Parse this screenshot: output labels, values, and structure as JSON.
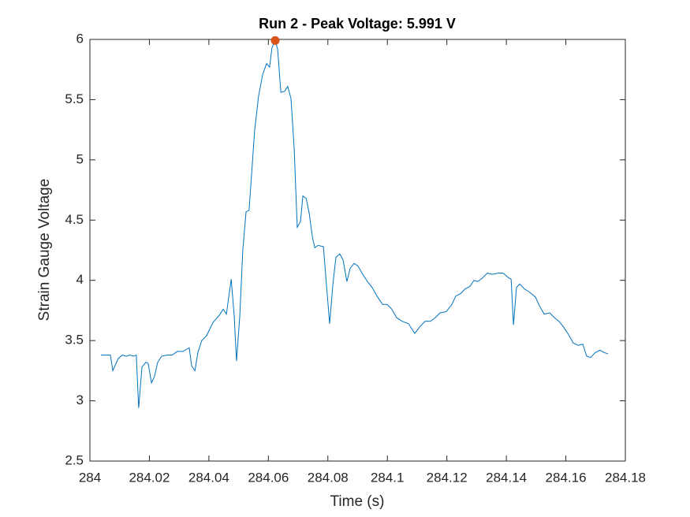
{
  "chart_data": {
    "type": "line",
    "title": "Run 2 - Peak Voltage: 5.991 V",
    "x_label": "Time (s)",
    "y_label": "Strain Gauge Voltage",
    "xlim": [
      284,
      284.18
    ],
    "xticks": [
      284,
      284.02,
      284.04,
      284.06,
      284.08,
      284.1,
      284.12,
      284.14,
      284.16,
      284.18
    ],
    "ylim": [
      2.5,
      6
    ],
    "yticks": [
      2.5,
      3,
      3.5,
      4,
      4.5,
      5,
      5.5,
      6
    ],
    "x": [
      284.0037,
      284.0069,
      284.0077,
      284.0095,
      284.0109,
      284.0122,
      284.0135,
      284.0148,
      284.0156,
      284.0164,
      284.0175,
      284.0188,
      284.0196,
      284.0207,
      284.0217,
      284.0228,
      284.0241,
      284.026,
      284.0276,
      284.0294,
      284.0313,
      284.0334,
      284.0342,
      284.0353,
      284.0363,
      284.0376,
      284.0392,
      284.0414,
      284.0435,
      284.0448,
      284.0459,
      284.0475,
      284.0485,
      284.0493,
      284.0504,
      284.0514,
      284.0525,
      284.0535,
      284.0543,
      284.0554,
      284.0567,
      284.0581,
      284.0594,
      284.0604,
      284.0612,
      284.0623,
      284.0631,
      284.0642,
      284.0655,
      284.0665,
      284.0676,
      284.0687,
      284.0697,
      284.0708,
      284.0716,
      284.0727,
      284.0737,
      284.0748,
      284.0756,
      284.0767,
      284.0785,
      284.0795,
      284.0806,
      284.0817,
      284.0827,
      284.084,
      284.0851,
      284.0864,
      284.0875,
      284.0888,
      284.0901,
      284.0917,
      284.0933,
      284.0949,
      284.0965,
      284.0984,
      284.0999,
      284.1015,
      284.1031,
      284.105,
      284.1071,
      284.1092,
      284.1111,
      284.1127,
      284.1145,
      284.1161,
      284.1177,
      284.1198,
      284.1217,
      284.123,
      284.1246,
      284.1262,
      284.1278,
      284.1291,
      284.1304,
      284.132,
      284.1336,
      284.1352,
      284.1373,
      284.1389,
      284.1408,
      284.1416,
      284.1424,
      284.1434,
      284.1445,
      284.146,
      284.1479,
      284.1498,
      284.1511,
      284.1527,
      284.1546,
      284.1562,
      284.1577,
      284.1593,
      284.1609,
      284.1625,
      284.1641,
      284.1657,
      284.167,
      284.1683,
      284.1699,
      284.1715,
      284.1729,
      284.1742
    ],
    "series": [
      {
        "color": "#0072bd",
        "values": [
          3.38,
          3.38,
          3.25,
          3.35,
          3.38,
          3.37,
          3.38,
          3.37,
          3.38,
          2.94,
          3.28,
          3.32,
          3.31,
          3.15,
          3.2,
          3.32,
          3.37,
          3.38,
          3.38,
          3.41,
          3.41,
          3.44,
          3.29,
          3.25,
          3.4,
          3.5,
          3.54,
          3.65,
          3.71,
          3.76,
          3.72,
          4.01,
          3.71,
          3.33,
          3.71,
          4.25,
          4.57,
          4.58,
          4.86,
          5.25,
          5.53,
          5.71,
          5.8,
          5.77,
          5.93,
          5.991,
          5.92,
          5.56,
          5.57,
          5.61,
          5.51,
          5.08,
          4.44,
          4.49,
          4.7,
          4.68,
          4.56,
          4.36,
          4.27,
          4.29,
          4.28,
          3.97,
          3.64,
          3.97,
          4.19,
          4.22,
          4.17,
          3.99,
          4.1,
          4.14,
          4.12,
          4.05,
          3.99,
          3.94,
          3.87,
          3.8,
          3.8,
          3.76,
          3.69,
          3.66,
          3.64,
          3.56,
          3.62,
          3.66,
          3.66,
          3.69,
          3.73,
          3.74,
          3.8,
          3.87,
          3.89,
          3.93,
          3.95,
          4.0,
          3.99,
          4.02,
          4.06,
          4.05,
          4.06,
          4.06,
          4.02,
          4.01,
          3.63,
          3.94,
          3.97,
          3.93,
          3.9,
          3.86,
          3.79,
          3.72,
          3.73,
          3.69,
          3.66,
          3.61,
          3.55,
          3.48,
          3.46,
          3.47,
          3.37,
          3.36,
          3.4,
          3.42,
          3.4,
          3.39
        ]
      }
    ],
    "markers": [
      {
        "x": 284.0623,
        "y": 5.991,
        "color": "#d95319"
      }
    ]
  }
}
